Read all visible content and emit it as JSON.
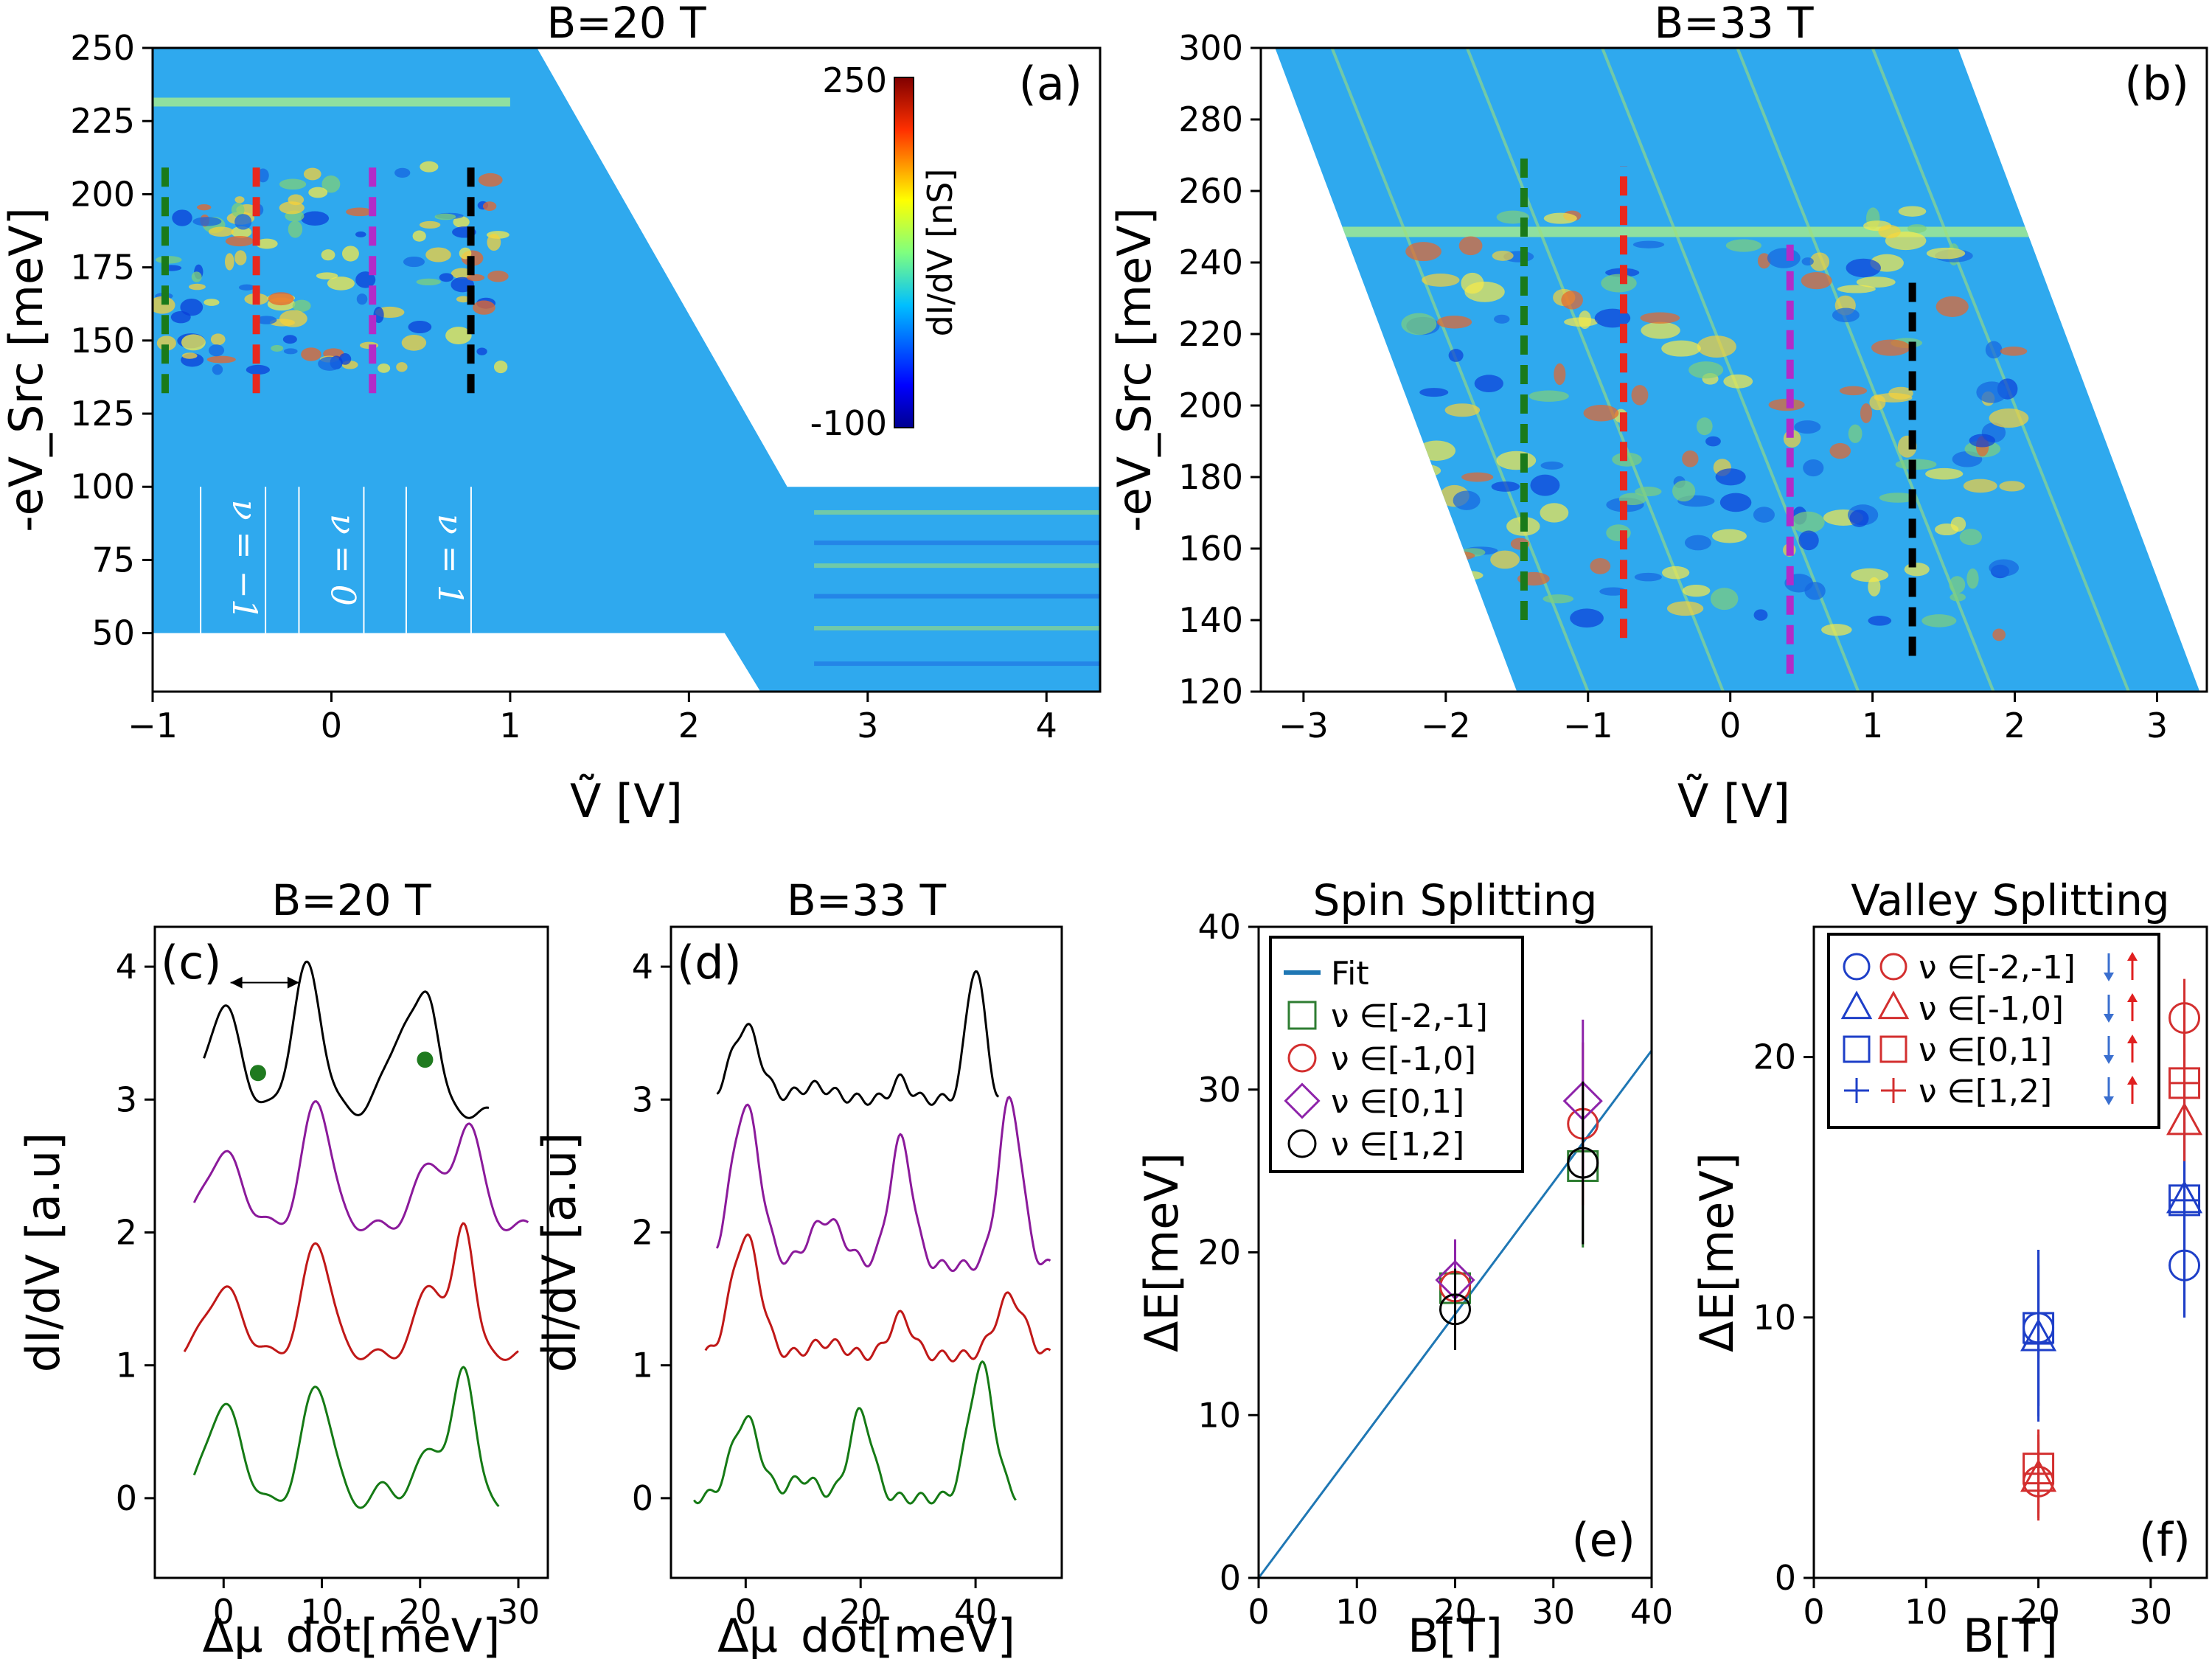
{
  "chart_data": [
    {
      "id": "a",
      "type": "heatmap",
      "panel_label": "(a)",
      "title": "B=20 T",
      "xlabel": "Ṽ [V]",
      "ylabel": "-eV_Src [meV]",
      "xlim": [
        -1.0,
        4.3
      ],
      "ylim": [
        30,
        250
      ],
      "xticks": [
        "−1",
        "0",
        "1",
        "2",
        "3",
        "4"
      ],
      "xtick_values": [
        -1,
        0,
        1,
        2,
        3,
        4
      ],
      "yticks": [
        "50",
        "75",
        "100",
        "125",
        "150",
        "175",
        "200",
        "225",
        "250"
      ],
      "ytick_values": [
        50,
        75,
        100,
        125,
        150,
        175,
        200,
        225,
        250
      ],
      "colorbar": {
        "label": "dI/dV [nS]",
        "min_label": "-100",
        "max_label": "250",
        "min": -100,
        "max": 250
      },
      "filling_labels": [
        "ν = −1",
        "ν = 0",
        "ν = 1"
      ],
      "filling_label_x": [
        -0.55,
        0.0,
        0.6
      ],
      "cut_lines": [
        {
          "color": "#1a7a1a",
          "x": -0.93,
          "y": [
            132,
            210
          ]
        },
        {
          "color": "#e8281e",
          "x": -0.42,
          "y": [
            132,
            210
          ]
        },
        {
          "color": "#b22cc8",
          "x": 0.23,
          "y": [
            132,
            210
          ]
        },
        {
          "color": "#000000",
          "x": 0.78,
          "y": [
            132,
            210
          ]
        }
      ]
    },
    {
      "id": "b",
      "type": "heatmap",
      "panel_label": "(b)",
      "title": "B=33 T",
      "xlabel": "Ṽ [V]",
      "ylabel": "-eV_Src [meV]",
      "xlim": [
        -3.3,
        3.35
      ],
      "ylim": [
        120,
        300
      ],
      "xticks": [
        "−3",
        "−2",
        "−1",
        "0",
        "1",
        "2",
        "3"
      ],
      "xtick_values": [
        -3,
        -2,
        -1,
        0,
        1,
        2,
        3
      ],
      "yticks": [
        "120",
        "140",
        "160",
        "180",
        "200",
        "220",
        "240",
        "260",
        "280",
        "300"
      ],
      "ytick_values": [
        120,
        140,
        160,
        180,
        200,
        220,
        240,
        260,
        280,
        300
      ],
      "cut_lines": [
        {
          "color": "#1a7a1a",
          "x": -1.45,
          "y": [
            140,
            270
          ]
        },
        {
          "color": "#e8281e",
          "x": -0.75,
          "y": [
            135,
            267
          ]
        },
        {
          "color": "#b22cc8",
          "x": 0.42,
          "y": [
            125,
            245
          ]
        },
        {
          "color": "#000000",
          "x": 1.28,
          "y": [
            130,
            235
          ]
        }
      ]
    },
    {
      "id": "c",
      "type": "line",
      "panel_label": "(c)",
      "title": "B=20 T",
      "xlabel": "Δμ_dot[meV]",
      "ylabel": "dI/dV [a.u]",
      "xlim": [
        -7,
        33
      ],
      "ylim": [
        -0.6,
        4.3
      ],
      "xticks": [
        "0",
        "10",
        "20",
        "30"
      ],
      "xtick_values": [
        0,
        10,
        20,
        30
      ],
      "yticks": [
        "0",
        "1",
        "2",
        "3",
        "4"
      ],
      "ytick_values": [
        0,
        1,
        2,
        3,
        4
      ],
      "series": [
        {
          "name": "black",
          "color": "#000000",
          "offset": 2.9,
          "x_range": [
            -2,
            27
          ],
          "peaks": [
            [
              0,
              0.8,
              1.7
            ],
            [
              8.5,
              1.1,
              1.5
            ],
            [
              18.5,
              0.65,
              1.8
            ],
            [
              21,
              0.65,
              1.0
            ]
          ],
          "markers": [
            [
              3.5,
              3.2
            ],
            [
              20.5,
              3.3
            ]
          ]
        },
        {
          "name": "purple",
          "color": "#8b1a9b",
          "offset": 2.05,
          "x_range": [
            -3,
            31
          ],
          "peaks": [
            [
              0,
              0.55,
              1.8
            ],
            [
              9.5,
              0.95,
              1.4
            ],
            [
              21,
              0.5,
              1.4
            ],
            [
              25,
              0.8,
              1.2
            ]
          ]
        },
        {
          "name": "red",
          "color": "#c01818",
          "offset": 1.08,
          "x_range": [
            -4,
            30
          ],
          "peaks": [
            [
              0,
              0.5,
              1.8
            ],
            [
              9.5,
              0.85,
              1.4
            ],
            [
              21,
              0.55,
              1.3
            ],
            [
              24.5,
              1.0,
              1.0
            ]
          ]
        },
        {
          "name": "green",
          "color": "#157a15",
          "offset": -0.05,
          "x_range": [
            -3,
            28
          ],
          "peaks": [
            [
              0,
              0.75,
              1.8
            ],
            [
              9.5,
              0.9,
              1.5
            ],
            [
              16.5,
              0.15,
              1.0
            ],
            [
              21,
              0.45,
              1.3
            ],
            [
              24.5,
              1.05,
              1.1
            ]
          ]
        }
      ],
      "annotation": "double-arrow between peaks at 0.5 and 8 meV"
    },
    {
      "id": "d",
      "type": "line",
      "panel_label": "(d)",
      "title": "B=33 T",
      "xlabel": "Δμ_dot[meV]",
      "ylabel": "dI/dV [a.u]",
      "xlim": [
        -13,
        55
      ],
      "ylim": [
        -0.6,
        4.3
      ],
      "xticks": [
        "0",
        "20",
        "40"
      ],
      "xtick_values": [
        0,
        20,
        40
      ],
      "yticks": [
        "0",
        "1",
        "2",
        "3",
        "4"
      ],
      "ytick_values": [
        0,
        1,
        2,
        3,
        4
      ],
      "series": [
        {
          "name": "black",
          "color": "#000000",
          "offset": 3.0,
          "x_range": [
            -5,
            44
          ],
          "peaks": [
            [
              0,
              0.55,
              2.5
            ],
            [
              12,
              0.1,
              3
            ],
            [
              27,
              0.15,
              1.5
            ],
            [
              40,
              1.0,
              1.6
            ]
          ]
        },
        {
          "name": "purple",
          "color": "#8b1a9b",
          "offset": 1.75,
          "x_range": [
            -5,
            53
          ],
          "peaks": [
            [
              0,
              1.2,
              2.5
            ],
            [
              14,
              0.35,
              3
            ],
            [
              27,
              0.95,
              2
            ],
            [
              46,
              1.25,
              2
            ]
          ]
        },
        {
          "name": "red",
          "color": "#c01818",
          "offset": 1.07,
          "x_range": [
            -7,
            53
          ],
          "peaks": [
            [
              0,
              0.9,
              2.5
            ],
            [
              14,
              0.1,
              3
            ],
            [
              27,
              0.3,
              2
            ],
            [
              46,
              0.45,
              2.5
            ]
          ]
        },
        {
          "name": "green",
          "color": "#157a15",
          "offset": 0.0,
          "x_range": [
            -9,
            47
          ],
          "peaks": [
            [
              0,
              0.6,
              2.5
            ],
            [
              10,
              0.15,
              2.5
            ],
            [
              20,
              0.65,
              2
            ],
            [
              41,
              1.0,
              2.2
            ]
          ]
        }
      ]
    },
    {
      "id": "e",
      "type": "scatter",
      "panel_label": "(e)",
      "title": "Spin Splitting",
      "xlabel": "B[T]",
      "ylabel": "ΔE[meV]",
      "xlim": [
        0,
        40
      ],
      "ylim": [
        0,
        40
      ],
      "xticks": [
        "0",
        "10",
        "20",
        "30",
        "40"
      ],
      "xtick_values": [
        0,
        10,
        20,
        30,
        40
      ],
      "yticks": [
        "0",
        "10",
        "20",
        "30",
        "40"
      ],
      "ytick_values": [
        0,
        10,
        20,
        30,
        40
      ],
      "fit": {
        "label": "Fit",
        "slope": 0.81,
        "color": "#1f77b4"
      },
      "series": [
        {
          "name": "ν ∈[-2,-1]",
          "marker": "square",
          "color": "#2e7d32",
          "points": [
            [
              20,
              17.8,
              1.5
            ],
            [
              33,
              25.3,
              5
            ]
          ]
        },
        {
          "name": "ν ∈[-1,0]",
          "marker": "circle",
          "color": "#d32f2f",
          "points": [
            [
              20,
              17.9,
              1.5
            ],
            [
              33,
              27.9,
              5
            ]
          ]
        },
        {
          "name": "ν ∈[0,1]",
          "marker": "diamond",
          "color": "#8e24aa",
          "points": [
            [
              20,
              18.3,
              2.5
            ],
            [
              33,
              29.3,
              5
            ]
          ]
        },
        {
          "name": "ν ∈[1,2]",
          "marker": "circle",
          "color": "#000000",
          "points": [
            [
              20,
              16.5,
              2.5
            ],
            [
              33,
              25.5,
              5
            ]
          ]
        }
      ]
    },
    {
      "id": "f",
      "type": "scatter",
      "panel_label": "(f)",
      "title": "Valley Splitting",
      "xlabel": "B[T]",
      "ylabel": "ΔE[meV]",
      "xlim": [
        0,
        35
      ],
      "ylim": [
        0,
        25
      ],
      "xticks": [
        "0",
        "10",
        "20",
        "30"
      ],
      "xtick_values": [
        0,
        10,
        20,
        30
      ],
      "yticks": [
        "0",
        "10",
        "20"
      ],
      "ytick_values": [
        0,
        10,
        20
      ],
      "legend": [
        "ν ∈[-2,-1]",
        "ν ∈[-1,0]",
        "ν ∈[0,1]",
        "ν ∈[1,2]"
      ],
      "series": [
        {
          "name": "ν ∈[-2,-1] down",
          "marker": "circle",
          "color": "#1e3fc8",
          "points": [
            [
              20,
              9.6,
              3
            ],
            [
              33,
              12.0,
              2
            ]
          ]
        },
        {
          "name": "ν ∈[-2,-1] up",
          "marker": "circle",
          "color": "#d32f2f",
          "points": [
            [
              20,
              3.7,
              1.5
            ],
            [
              33,
              21.5,
              1.5
            ]
          ]
        },
        {
          "name": "ν ∈[-1,0] down",
          "marker": "triangle",
          "color": "#1e3fc8",
          "points": [
            [
              20,
              9.2,
              3
            ],
            [
              33,
              14.5,
              3
            ]
          ]
        },
        {
          "name": "ν ∈[-1,0] up",
          "marker": "triangle",
          "color": "#d32f2f",
          "points": [
            [
              20,
              3.8,
              1.5
            ],
            [
              33,
              17.5,
              3
            ]
          ]
        },
        {
          "name": "ν ∈[0,1] down",
          "marker": "square",
          "color": "#1e3fc8",
          "points": [
            [
              20,
              9.6,
              3
            ],
            [
              33,
              14.5,
              4.5
            ]
          ]
        },
        {
          "name": "ν ∈[0,1] up",
          "marker": "square",
          "color": "#d32f2f",
          "points": [
            [
              20,
              4.2,
              1.5
            ],
            [
              33,
              19.0,
              3
            ]
          ]
        },
        {
          "name": "ν ∈[1,2] down",
          "marker": "plus",
          "color": "#1e3fc8",
          "points": [
            [
              20,
              9.0,
              3
            ],
            [
              33,
              14.5,
              4.5
            ]
          ]
        },
        {
          "name": "ν ∈[1,2] up",
          "marker": "plus",
          "color": "#d32f2f",
          "points": [
            [
              20,
              4.0,
              1.5
            ],
            [
              33,
              19.0,
              3
            ]
          ]
        }
      ]
    }
  ]
}
